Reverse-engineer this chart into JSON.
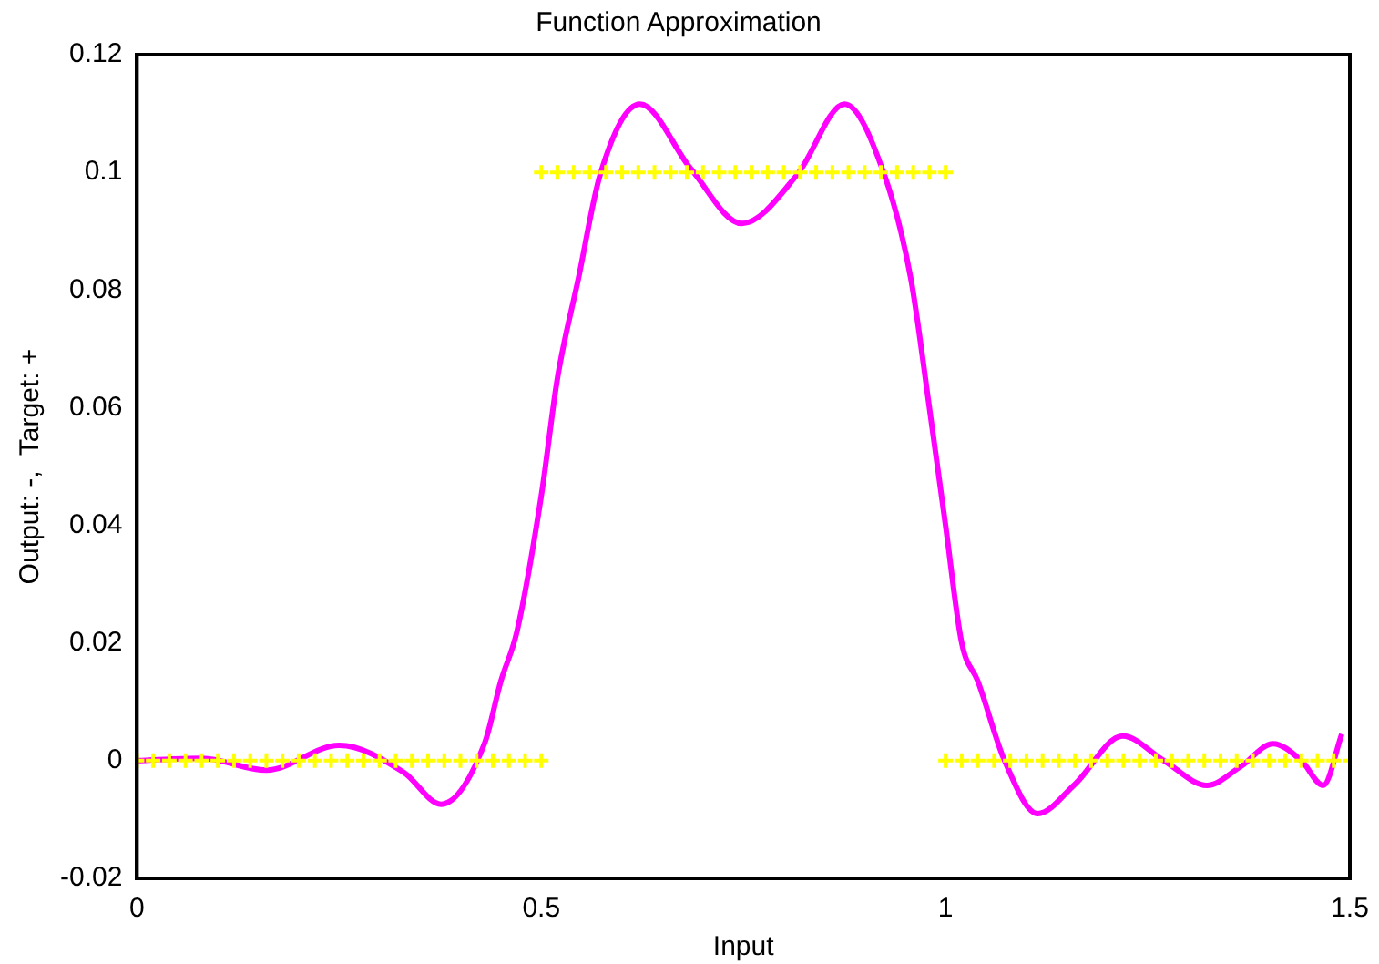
{
  "chart_data": {
    "type": "line",
    "title": "Function Approximation",
    "xlabel": "Input",
    "ylabel": "Output: -,  Target: +",
    "xlim": [
      0,
      1.5
    ],
    "xticks": [
      0,
      0.5,
      1,
      1.5
    ],
    "ylim": [
      -0.02,
      0.12
    ],
    "yticks": [
      -0.02,
      0,
      0.02,
      0.04,
      0.06,
      0.08,
      0.1,
      0.12
    ],
    "grid": false,
    "legend": false,
    "series": [
      {
        "type": "scatter",
        "marker": "cross",
        "color": "#ffff00",
        "x": [
          0,
          0.02,
          0.04,
          0.06,
          0.08,
          0.1,
          0.12,
          0.14,
          0.16,
          0.18,
          0.2,
          0.22,
          0.24,
          0.26,
          0.28,
          0.3,
          0.32,
          0.34,
          0.36,
          0.38,
          0.4,
          0.42,
          0.44,
          0.46,
          0.48,
          0.5,
          0.5,
          0.52,
          0.54,
          0.56,
          0.58,
          0.6,
          0.62,
          0.64,
          0.66,
          0.68,
          0.7,
          0.72,
          0.74,
          0.76,
          0.78,
          0.8,
          0.82,
          0.84,
          0.86,
          0.88,
          0.9,
          0.92,
          0.94,
          0.96,
          0.98,
          1,
          1,
          1.02,
          1.04,
          1.06,
          1.08,
          1.1,
          1.12,
          1.14,
          1.16,
          1.18,
          1.2,
          1.22,
          1.24,
          1.26,
          1.28,
          1.3,
          1.32,
          1.34,
          1.36,
          1.38,
          1.4,
          1.42,
          1.44,
          1.46,
          1.48,
          1.5
        ],
        "values": [
          0,
          0,
          0,
          0,
          0,
          0,
          0,
          0,
          0,
          0,
          0,
          0,
          0,
          0,
          0,
          0,
          0,
          0,
          0,
          0,
          0,
          0,
          0,
          0,
          0,
          0,
          0.1,
          0.1,
          0.1,
          0.1,
          0.1,
          0.1,
          0.1,
          0.1,
          0.1,
          0.1,
          0.1,
          0.1,
          0.1,
          0.1,
          0.1,
          0.1,
          0.1,
          0.1,
          0.1,
          0.1,
          0.1,
          0.1,
          0.1,
          0.1,
          0.1,
          0.1,
          0,
          0,
          0,
          0,
          0,
          0,
          0,
          0,
          0,
          0,
          0,
          0,
          0,
          0,
          0,
          0,
          0,
          0,
          0,
          0,
          0,
          0,
          0,
          0,
          0,
          0
        ]
      },
      {
        "type": "line",
        "marker": "none",
        "color": "#ff00ff",
        "x": [
          0,
          0.08,
          0.16,
          0.25,
          0.33,
          0.376,
          0.43,
          0.45,
          0.47,
          0.5,
          0.52,
          0.546,
          0.573,
          0.622,
          0.685,
          0.748,
          0.817,
          0.875,
          0.924,
          0.957,
          0.98,
          1,
          1.02,
          1.04,
          1.073,
          1.114,
          1.16,
          1.219,
          1.27,
          1.323,
          1.365,
          1.405,
          1.44,
          1.467,
          1.49
        ],
        "values": [
          0,
          0.0004,
          -0.0016,
          0.0026,
          -0.002,
          -0.0074,
          0.003,
          0.0135,
          0.022,
          0.045,
          0.065,
          0.082,
          0.0997,
          0.1116,
          0.1006,
          0.0913,
          0.0997,
          0.1116,
          0.0997,
          0.082,
          0.06,
          0.04,
          0.02,
          0.0135,
          0,
          -0.009,
          -0.004,
          0.0042,
          0,
          -0.0042,
          -0.001,
          0.0029,
          0,
          -0.0042,
          0.0045
        ]
      }
    ]
  }
}
